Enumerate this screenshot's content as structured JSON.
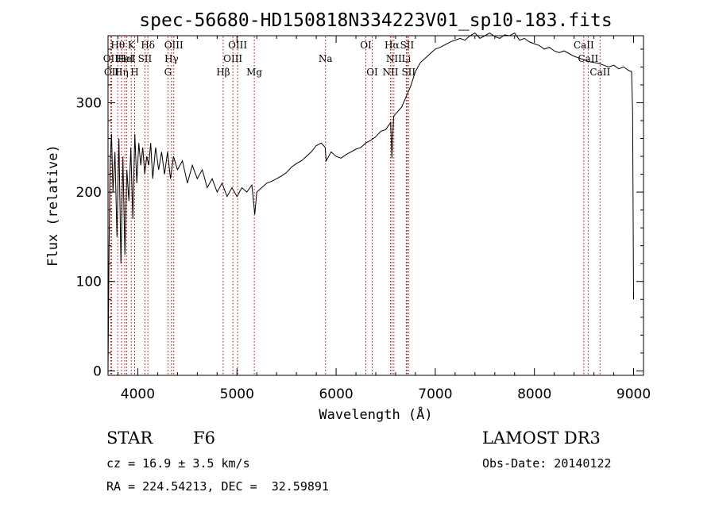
{
  "chart_data": {
    "type": "line",
    "title": "spec-56680-HD150818N334223V01_sp10-183.fits",
    "xlabel": "Wavelength (Å)",
    "ylabel": "Flux (relative)",
    "xlim": [
      3700,
      9100
    ],
    "ylim": [
      -5,
      375
    ],
    "xticks": [
      4000,
      5000,
      6000,
      7000,
      8000,
      9000
    ],
    "yticks": [
      0,
      100,
      200,
      300
    ],
    "grid": false,
    "line_color": "#000000",
    "marker_color": "#aa0000",
    "series": [
      {
        "x": [
          3700,
          3710,
          3720,
          3735,
          3750,
          3770,
          3790,
          3810,
          3830,
          3850,
          3870,
          3890,
          3910,
          3930,
          3950,
          3970,
          3990,
          4010,
          4030,
          4050,
          4070,
          4090,
          4110,
          4130,
          4150,
          4180,
          4210,
          4240,
          4270,
          4300,
          4330,
          4360,
          4400,
          4450,
          4500,
          4550,
          4600,
          4650,
          4700,
          4750,
          4800,
          4850,
          4900,
          4950,
          5000,
          5050,
          5100,
          5150,
          5180,
          5200,
          5250,
          5300,
          5350,
          5400,
          5450,
          5500,
          5550,
          5600,
          5650,
          5700,
          5750,
          5800,
          5850,
          5890,
          5900,
          5950,
          6000,
          6050,
          6100,
          6150,
          6200,
          6250,
          6300,
          6350,
          6400,
          6450,
          6500,
          6550,
          6563,
          6580,
          6620,
          6660,
          6700,
          6750,
          6800,
          6850,
          6900,
          6950,
          7000,
          7050,
          7100,
          7150,
          7200,
          7250,
          7300,
          7350,
          7400,
          7450,
          7500,
          7550,
          7600,
          7650,
          7700,
          7750,
          7800,
          7850,
          7900,
          7950,
          8000,
          8050,
          8100,
          8150,
          8200,
          8250,
          8300,
          8350,
          8400,
          8450,
          8500,
          8550,
          8600,
          8650,
          8700,
          8750,
          8800,
          8850,
          8900,
          8950,
          8980,
          8990,
          9000
        ],
        "values": [
          0,
          130,
          230,
          265,
          200,
          245,
          150,
          260,
          120,
          240,
          130,
          225,
          190,
          250,
          170,
          265,
          210,
          255,
          230,
          250,
          220,
          240,
          230,
          255,
          215,
          250,
          225,
          245,
          220,
          245,
          215,
          240,
          225,
          235,
          210,
          230,
          215,
          225,
          205,
          215,
          200,
          210,
          195,
          205,
          195,
          205,
          200,
          208,
          175,
          200,
          205,
          210,
          212,
          215,
          218,
          222,
          228,
          232,
          235,
          240,
          245,
          252,
          255,
          250,
          235,
          245,
          240,
          238,
          242,
          245,
          248,
          250,
          255,
          258,
          262,
          268,
          270,
          278,
          238,
          285,
          290,
          295,
          305,
          318,
          335,
          345,
          350,
          355,
          360,
          362,
          365,
          368,
          370,
          372,
          370,
          375,
          378,
          372,
          375,
          378,
          374,
          372,
          376,
          375,
          378,
          370,
          372,
          368,
          366,
          364,
          360,
          362,
          358,
          356,
          358,
          355,
          352,
          350,
          348,
          346,
          345,
          344,
          342,
          340,
          342,
          338,
          340,
          336,
          335,
          290,
          80
        ]
      }
    ],
    "lines": [
      {
        "x": 3727,
        "label": "OII",
        "row": 2
      },
      {
        "x": 3736,
        "label": "OII",
        "row": 3
      },
      {
        "x": 3798,
        "label": "Hθ",
        "row": 1
      },
      {
        "x": 3835,
        "label": "Hη",
        "row": 3
      },
      {
        "x": 3869,
        "label": "HeI",
        "row": 2
      },
      {
        "x": 3889,
        "label": "HeI",
        "row": 2
      },
      {
        "x": 3934,
        "label": "K",
        "row": 1
      },
      {
        "x": 3968,
        "label": "H",
        "row": 3
      },
      {
        "x": 4072,
        "label": "SII",
        "row": 2
      },
      {
        "x": 4102,
        "label": "Hδ",
        "row": 1
      },
      {
        "x": 4304,
        "label": "G",
        "row": 3
      },
      {
        "x": 4340,
        "label": "Hγ",
        "row": 2
      },
      {
        "x": 4363,
        "label": "OIII",
        "row": 1
      },
      {
        "x": 4861,
        "label": "Hβ",
        "row": 3
      },
      {
        "x": 4959,
        "label": "OIII",
        "row": 2
      },
      {
        "x": 5007,
        "label": "OIII",
        "row": 1
      },
      {
        "x": 5175,
        "label": "Mg",
        "row": 3
      },
      {
        "x": 5893,
        "label": "Na",
        "row": 2
      },
      {
        "x": 6300,
        "label": "OI",
        "row": 1
      },
      {
        "x": 6364,
        "label": "OI",
        "row": 3
      },
      {
        "x": 6548,
        "label": "NII",
        "row": 3
      },
      {
        "x": 6563,
        "label": "Hα",
        "row": 1
      },
      {
        "x": 6583,
        "label": "NII",
        "row": 2
      },
      {
        "x": 6708,
        "label": "Li",
        "row": 2
      },
      {
        "x": 6716,
        "label": "SII",
        "row": 1
      },
      {
        "x": 6731,
        "label": "SII",
        "row": 3
      },
      {
        "x": 8498,
        "label": "CaII",
        "row": 1
      },
      {
        "x": 8542,
        "label": "CaII",
        "row": 2
      },
      {
        "x": 8662,
        "label": "CaII",
        "row": 3
      }
    ]
  },
  "info": {
    "object_class": "STAR",
    "subclass": "F6",
    "redshift": "cz = 16.9 ± 3.5 km/s",
    "coords": "RA = 224.54213, DEC =  32.59891",
    "survey": "LAMOST DR3",
    "obs_date": "Obs-Date: 20140122"
  }
}
